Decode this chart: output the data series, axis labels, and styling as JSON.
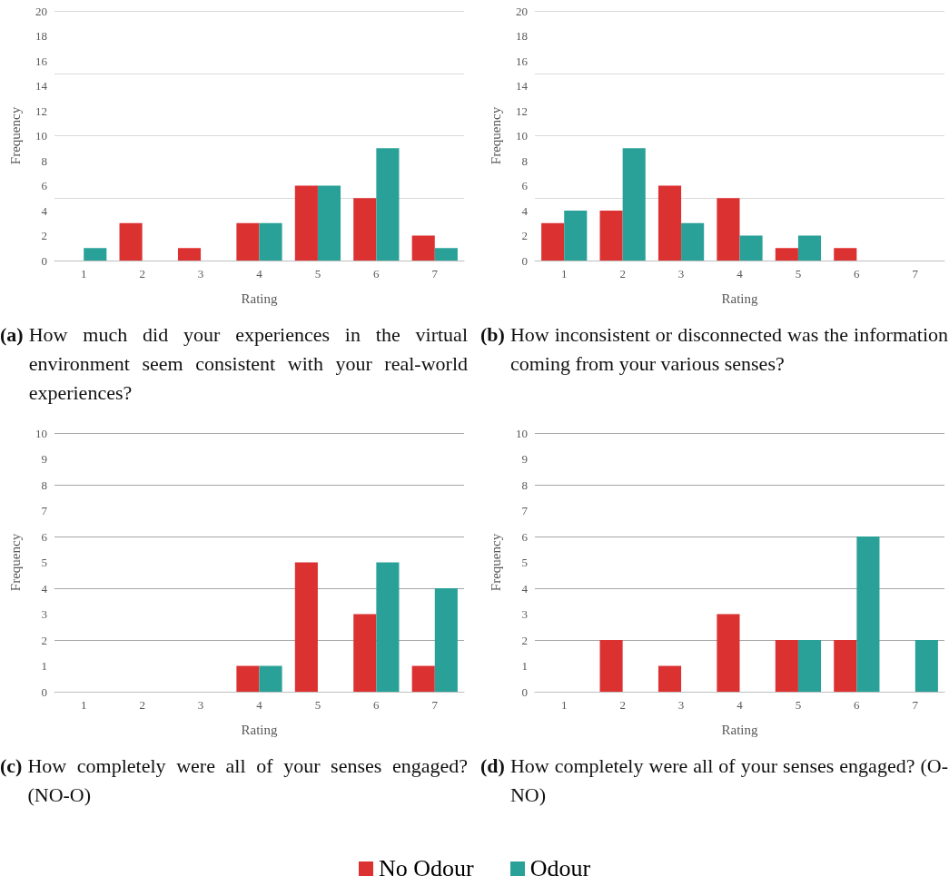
{
  "chart_data": [
    {
      "type": "bar",
      "title": "(a) How much did your experiences in the virtual environment seem consistent with your real-world experiences?",
      "xlabel": "Rating",
      "ylabel": "Frequency",
      "categories": [
        "1",
        "2",
        "3",
        "4",
        "5",
        "6",
        "7"
      ],
      "series": [
        {
          "name": "No Odour",
          "color": "#dc3131",
          "values": [
            0,
            3,
            1,
            3,
            6,
            5,
            2
          ]
        },
        {
          "name": "Odour",
          "color": "#2aa198",
          "values": [
            1,
            0,
            0,
            3,
            6,
            9,
            1
          ]
        }
      ],
      "ylim": [
        0,
        20
      ],
      "yticks": [
        0,
        2,
        4,
        6,
        8,
        10,
        12,
        14,
        16,
        18,
        20
      ],
      "grid": "y",
      "legend": "bottom"
    },
    {
      "type": "bar",
      "title": "(b) How inconsistent or disconnected was the information coming from your various senses?",
      "xlabel": "Rating",
      "ylabel": "Frequency",
      "categories": [
        "1",
        "2",
        "3",
        "4",
        "5",
        "6",
        "7"
      ],
      "series": [
        {
          "name": "No Odour",
          "color": "#dc3131",
          "values": [
            3,
            4,
            6,
            5,
            1,
            1,
            0
          ]
        },
        {
          "name": "Odour",
          "color": "#2aa198",
          "values": [
            4,
            9,
            3,
            2,
            2,
            0,
            0
          ]
        }
      ],
      "ylim": [
        0,
        20
      ],
      "yticks": [
        0,
        2,
        4,
        6,
        8,
        10,
        12,
        14,
        16,
        18,
        20
      ],
      "grid": "y",
      "legend": "bottom"
    },
    {
      "type": "bar",
      "title": "(c) How completely were all of your senses engaged? (NO-O)",
      "xlabel": "Rating",
      "ylabel": "Frequency",
      "categories": [
        "1",
        "2",
        "3",
        "4",
        "5",
        "6",
        "7"
      ],
      "series": [
        {
          "name": "No Odour",
          "color": "#dc3131",
          "values": [
            0,
            0,
            0,
            1,
            5,
            3,
            1
          ]
        },
        {
          "name": "Odour",
          "color": "#2aa198",
          "values": [
            0,
            0,
            0,
            1,
            0,
            5,
            4
          ]
        }
      ],
      "ylim": [
        0,
        10
      ],
      "yticks": [
        0,
        1,
        2,
        3,
        4,
        5,
        6,
        7,
        8,
        9,
        10
      ],
      "grid": "y",
      "legend": "bottom"
    },
    {
      "type": "bar",
      "title": "(d) How completely were all of your senses engaged? (O-NO)",
      "xlabel": "Rating",
      "ylabel": "Frequency",
      "categories": [
        "1",
        "2",
        "3",
        "4",
        "5",
        "6",
        "7"
      ],
      "series": [
        {
          "name": "No Odour",
          "color": "#dc3131",
          "values": [
            0,
            2,
            1,
            3,
            2,
            2,
            0
          ]
        },
        {
          "name": "Odour",
          "color": "#2aa198",
          "values": [
            0,
            0,
            0,
            0,
            2,
            6,
            2
          ]
        }
      ],
      "ylim": [
        0,
        10
      ],
      "yticks": [
        0,
        1,
        2,
        3,
        4,
        5,
        6,
        7,
        8,
        9,
        10
      ],
      "grid": "y",
      "legend": "bottom"
    }
  ]
}
